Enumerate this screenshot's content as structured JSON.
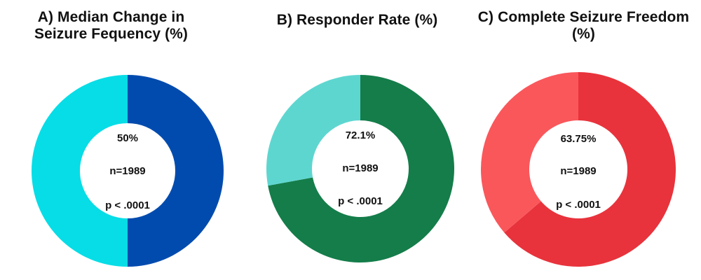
{
  "chart_data": [
    {
      "type": "pie",
      "title": "A) Median Change in Seizure Fequency (%)",
      "title_lines": [
        "A) Median Change in",
        "Seizure Fequency (%)"
      ],
      "slices": [
        {
          "value": 50,
          "color": "#024BAE"
        },
        {
          "value": 50,
          "color": "#07DDE6"
        }
      ],
      "center_labels": [
        "50%",
        "n=1989",
        "p < .0001"
      ]
    },
    {
      "type": "pie",
      "title": "B) Responder Rate (%)",
      "title_lines": [
        "B) Responder Rate (%)"
      ],
      "slices": [
        {
          "value": 72.1,
          "color": "#147D4A"
        },
        {
          "value": 27.9,
          "color": "#5ED6D0"
        }
      ],
      "center_labels": [
        "72.1%",
        "n=1989",
        "p < .0001"
      ]
    },
    {
      "type": "pie",
      "title": "C) Complete Seizure Freedom (%)",
      "title_lines": [
        "C) Complete Seizure Freedom (%)"
      ],
      "slices": [
        {
          "value": 63.75,
          "color": "#E8333C"
        },
        {
          "value": 36.25,
          "color": "#FA575B"
        }
      ],
      "center_labels": [
        "63.75%",
        "n=1989",
        "p < .0001"
      ]
    }
  ]
}
